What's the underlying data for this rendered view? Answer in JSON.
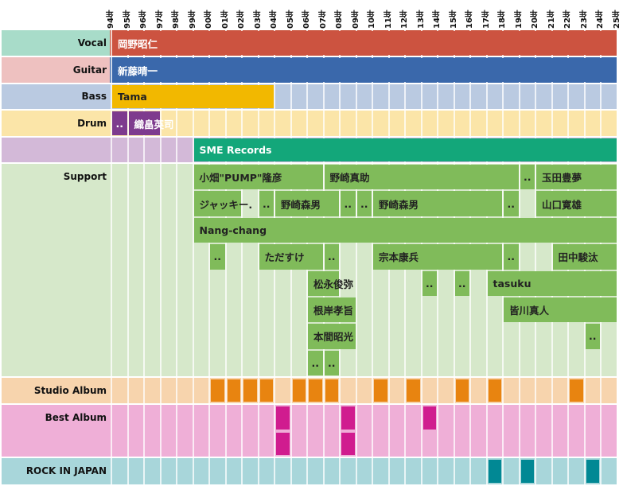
{
  "chart_data": {
    "type": "timeline",
    "year_range": [
      1994,
      2024
    ],
    "year_labels": [
      "94年",
      "95年",
      "96年",
      "97年",
      "98年",
      "99年",
      "00年",
      "01年",
      "02年",
      "03年",
      "04年",
      "05年",
      "06年",
      "07年",
      "08年",
      "09年",
      "10年",
      "11年",
      "12年",
      "13年",
      "14年",
      "15年",
      "16年",
      "17年",
      "18年",
      "19年",
      "20年",
      "21年",
      "22年",
      "23年",
      "24年",
      "25年"
    ],
    "rows": [
      {
        "label": "Vocal",
        "label_bg": "#a8dcc9",
        "bg": "#c9563f",
        "lanes": 1,
        "text_color": "#ffffff",
        "bars": [
          {
            "label": "岡野昭仁",
            "start": 1994,
            "end": 2024,
            "lane": 0,
            "color": "#cc5340"
          }
        ]
      },
      {
        "label": "Guitar",
        "label_bg": "#eec1c0",
        "bg": "#3a68ab",
        "lanes": 1,
        "text_color": "#ffffff",
        "bars": [
          {
            "label": "新藤晴一",
            "start": 1994,
            "end": 2024,
            "lane": 0,
            "color": "#3a68ab"
          }
        ]
      },
      {
        "label": "Bass",
        "label_bg": "#bacae1",
        "bg": "#bacae1",
        "lanes": 1,
        "text_color": "#222222",
        "bars": [
          {
            "label": "Tama",
            "start": 1994,
            "end": 2003,
            "lane": 0,
            "color": "#f2b800"
          }
        ]
      },
      {
        "label": "Drum",
        "label_bg": "#fbe5a8",
        "bg": "#fbe5a8",
        "lanes": 1,
        "text_color": "#ffffff",
        "bars": [
          {
            "label": "..",
            "start": 1994,
            "end": 1994,
            "lane": 0,
            "color": "#7e3b8e"
          },
          {
            "label": "織畠英司",
            "start": 1995,
            "end": 1996,
            "lane": 0,
            "color": "#7e3b8e"
          }
        ]
      },
      {
        "label": "",
        "label_bg": "#d3b9d8",
        "bg": "#d3b9d8",
        "lanes": 1,
        "text_color": "#ffffff",
        "bars": [
          {
            "label": "SME Records",
            "start": 1999,
            "end": 2024,
            "lane": 0,
            "color": "#13a77a"
          }
        ]
      },
      {
        "label": "Support",
        "label_bg": "#d6e8ca",
        "bg": "#d6e8ca",
        "lanes": 8,
        "text_color": "#222222",
        "bars": [
          {
            "label": "小畑\"PUMP\"隆彦",
            "start": 1999,
            "end": 2006,
            "lane": 0,
            "color": "#80bb5a"
          },
          {
            "label": "野崎真助",
            "start": 2007,
            "end": 2018,
            "lane": 0,
            "color": "#80bb5a"
          },
          {
            "label": "..",
            "start": 2019,
            "end": 2019,
            "lane": 0,
            "color": "#80bb5a"
          },
          {
            "label": "玉田豊夢",
            "start": 2020,
            "end": 2024,
            "lane": 0,
            "color": "#80bb5a"
          },
          {
            "label": "ジャッキー.",
            "start": 1999,
            "end": 2001,
            "lane": 1,
            "color": "#80bb5a"
          },
          {
            "label": "..",
            "start": 2003,
            "end": 2003,
            "lane": 1,
            "color": "#80bb5a"
          },
          {
            "label": "野崎森男",
            "start": 2004,
            "end": 2007,
            "lane": 1,
            "color": "#80bb5a"
          },
          {
            "label": "..",
            "start": 2008,
            "end": 2008,
            "lane": 1,
            "color": "#80bb5a"
          },
          {
            "label": "..",
            "start": 2009,
            "end": 2009,
            "lane": 1,
            "color": "#80bb5a"
          },
          {
            "label": "野崎森男",
            "start": 2010,
            "end": 2017,
            "lane": 1,
            "color": "#80bb5a"
          },
          {
            "label": "..",
            "start": 2018,
            "end": 2018,
            "lane": 1,
            "color": "#80bb5a"
          },
          {
            "label": "山口寛雄",
            "start": 2020,
            "end": 2024,
            "lane": 1,
            "color": "#80bb5a"
          },
          {
            "label": "Nang-chang",
            "start": 1999,
            "end": 2024,
            "lane": 2,
            "color": "#80bb5a"
          },
          {
            "label": "..",
            "start": 2000,
            "end": 2000,
            "lane": 3,
            "color": "#80bb5a"
          },
          {
            "label": "ただすけ",
            "start": 2003,
            "end": 2006,
            "lane": 3,
            "color": "#80bb5a"
          },
          {
            "label": "..",
            "start": 2007,
            "end": 2007,
            "lane": 3,
            "color": "#80bb5a"
          },
          {
            "label": "宗本康兵",
            "start": 2010,
            "end": 2017,
            "lane": 3,
            "color": "#80bb5a"
          },
          {
            "label": "..",
            "start": 2018,
            "end": 2018,
            "lane": 3,
            "color": "#80bb5a"
          },
          {
            "label": "田中駿汰",
            "start": 2021,
            "end": 2024,
            "lane": 3,
            "color": "#80bb5a"
          },
          {
            "label": "松永俊弥",
            "start": 2006,
            "end": 2007,
            "lane": 4,
            "color": "#80bb5a"
          },
          {
            "label": "..",
            "start": 2013,
            "end": 2013,
            "lane": 4,
            "color": "#80bb5a"
          },
          {
            "label": "..",
            "start": 2015,
            "end": 2015,
            "lane": 4,
            "color": "#80bb5a"
          },
          {
            "label": "tasuku",
            "start": 2017,
            "end": 2024,
            "lane": 4,
            "color": "#80bb5a"
          },
          {
            "label": "根岸孝旨",
            "start": 2006,
            "end": 2008,
            "lane": 5,
            "color": "#80bb5a"
          },
          {
            "label": "皆川真人",
            "start": 2018,
            "end": 2024,
            "lane": 5,
            "color": "#80bb5a"
          },
          {
            "label": "本間昭光",
            "start": 2006,
            "end": 2008,
            "lane": 6,
            "color": "#80bb5a"
          },
          {
            "label": "..",
            "start": 2023,
            "end": 2023,
            "lane": 6,
            "color": "#80bb5a"
          },
          {
            "label": "..",
            "start": 2006,
            "end": 2006,
            "lane": 7,
            "color": "#80bb5a"
          },
          {
            "label": "..",
            "start": 2007,
            "end": 2007,
            "lane": 7,
            "color": "#80bb5a"
          }
        ]
      },
      {
        "label": "Studio Album",
        "label_bg": "#f7d4ad",
        "bg": "#f7d4ad",
        "lanes": 1,
        "mark_color": "#e88410",
        "marks": [
          {
            "year": 2000,
            "lane": 0
          },
          {
            "year": 2001,
            "lane": 0
          },
          {
            "year": 2002,
            "lane": 0
          },
          {
            "year": 2003,
            "lane": 0
          },
          {
            "year": 2005,
            "lane": 0
          },
          {
            "year": 2006,
            "lane": 0
          },
          {
            "year": 2007,
            "lane": 0
          },
          {
            "year": 2010,
            "lane": 0
          },
          {
            "year": 2012,
            "lane": 0
          },
          {
            "year": 2015,
            "lane": 0
          },
          {
            "year": 2017,
            "lane": 0
          },
          {
            "year": 2022,
            "lane": 0
          }
        ]
      },
      {
        "label": "Best Album",
        "label_bg": "#efafd7",
        "bg": "#efafd7",
        "lanes": 2,
        "mark_color": "#d01c8f",
        "marks": [
          {
            "year": 2004,
            "lane": 0
          },
          {
            "year": 2004,
            "lane": 1
          },
          {
            "year": 2008,
            "lane": 0
          },
          {
            "year": 2008,
            "lane": 1
          },
          {
            "year": 2013,
            "lane": 0
          }
        ]
      },
      {
        "label": "ROCK IN JAPAN",
        "label_bg": "#a8d6da",
        "bg": "#a8d6da",
        "lanes": 1,
        "mark_color": "#018894",
        "marks": [
          {
            "year": 2017,
            "lane": 0
          },
          {
            "year": 2019,
            "lane": 0
          },
          {
            "year": 2023,
            "lane": 0
          }
        ]
      }
    ]
  }
}
